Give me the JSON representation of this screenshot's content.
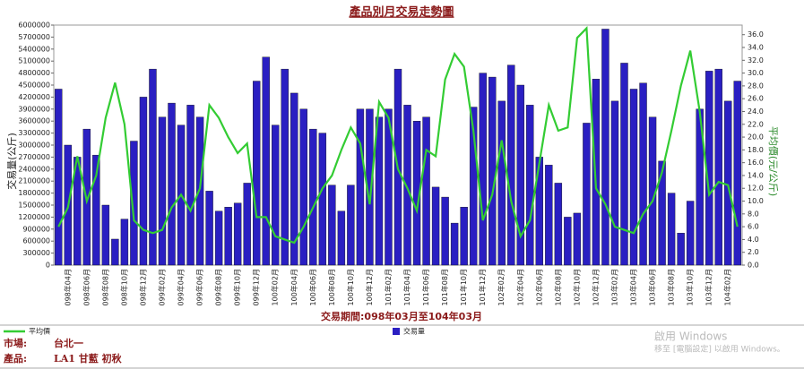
{
  "chart_data": {
    "type": "bar",
    "title": "產品別月交易走勢圖",
    "y_label": "交易量(公斤)",
    "y2_label": "平均價(元/公斤)",
    "x_label": "交易期間:098年03月至104年03月",
    "categories": [
      null,
      "098年04月",
      null,
      "098年06月",
      null,
      "098年08月",
      null,
      "098年10月",
      null,
      "098年12月",
      null,
      "099年02月",
      null,
      "099年04月",
      null,
      "099年06月",
      null,
      "099年08月",
      null,
      "099年10月",
      null,
      "099年12月",
      null,
      "100年02月",
      null,
      "100年04月",
      null,
      "100年06月",
      null,
      "100年08月",
      null,
      "100年10月",
      null,
      "100年12月",
      null,
      "101年02月",
      null,
      "101年04月",
      null,
      "101年06月",
      null,
      "101年08月",
      null,
      "101年10月",
      null,
      "101年12月",
      null,
      "102年02月",
      null,
      "102年04月",
      null,
      "102年06月",
      null,
      "102年08月",
      null,
      "102年10月",
      null,
      "102年12月",
      null,
      "103年02月",
      null,
      "103年04月",
      null,
      "103年06月",
      null,
      "103年08月",
      null,
      "103年10月",
      null,
      "103年12月",
      null,
      "104年02月",
      null
    ],
    "series": [
      {
        "name": "交易量",
        "type": "bar",
        "color": "#2a1fc2",
        "values": [
          4400000,
          3000000,
          2700000,
          3400000,
          2750000,
          1500000,
          650000,
          1150000,
          3100000,
          4200000,
          4900000,
          3700000,
          4050000,
          3500000,
          4000000,
          3700000,
          1850000,
          1350000,
          1450000,
          1550000,
          2050000,
          4600000,
          5200000,
          3500000,
          4900000,
          4300000,
          3900000,
          3400000,
          3300000,
          2000000,
          1350000,
          2000000,
          3900000,
          3900000,
          3700000,
          3900000,
          4900000,
          4000000,
          3600000,
          3700000,
          1950000,
          1700000,
          1050000,
          1450000,
          3950000,
          4800000,
          4700000,
          4100000,
          5000000,
          4500000,
          4000000,
          2700000,
          2500000,
          2050000,
          1200000,
          1300000,
          3550000,
          4650000,
          5900000,
          4100000,
          5050000,
          4400000,
          4550000,
          3700000,
          2600000,
          1800000,
          800000,
          1600000,
          3900000,
          4850000,
          4900000,
          4100000,
          4600000
        ]
      },
      {
        "name": "平均價",
        "type": "line",
        "axis": "y2",
        "color": "#33cc33",
        "values": [
          6,
          9,
          17,
          10,
          14,
          23,
          28.5,
          22,
          7,
          5.5,
          5,
          5.5,
          9,
          11,
          8.5,
          12,
          25,
          23,
          20,
          17.5,
          19,
          7.5,
          7.5,
          4.5,
          4,
          3.5,
          6,
          9,
          12,
          14,
          18,
          21.5,
          19,
          9.5,
          25.5,
          23,
          15,
          12,
          8.5,
          18,
          17,
          29,
          33,
          31,
          21,
          7,
          11,
          19.5,
          10,
          4.5,
          7,
          16,
          25,
          21,
          21.5,
          35.5,
          37,
          12,
          9.5,
          6,
          5.5,
          5,
          8,
          10,
          14.5,
          21,
          28,
          33.5,
          24,
          11,
          13,
          12.5,
          6
        ]
      }
    ],
    "ylim": [
      0,
      6000000
    ],
    "yticks": [
      0,
      300000,
      600000,
      900000,
      1200000,
      1500000,
      1800000,
      2100000,
      2400000,
      2700000,
      3000000,
      3300000,
      3600000,
      3900000,
      4200000,
      4500000,
      4800000,
      5100000,
      5400000,
      5700000,
      6000000
    ],
    "y2lim": [
      0,
      37.5
    ],
    "y2ticks": [
      {
        "value": 0,
        "label": "0.0"
      },
      {
        "value": 2,
        "label": "2.0"
      },
      {
        "value": 4,
        "label": "4.0"
      },
      {
        "value": 6,
        "label": "6.0"
      },
      {
        "value": 8,
        "label": "8.0"
      },
      {
        "value": 10,
        "label": "10.0"
      },
      {
        "value": 12,
        "label": "12.0"
      },
      {
        "value": 14,
        "label": "14.0"
      },
      {
        "value": 16,
        "label": "16.0"
      },
      {
        "value": 18,
        "label": "18.0"
      },
      {
        "value": 20,
        "label": "20.0"
      },
      {
        "value": 22,
        "label": "22.0"
      },
      {
        "value": 24,
        "label": "24.0"
      },
      {
        "value": 26,
        "label": "26.0"
      },
      {
        "value": 28,
        "label": "28.0"
      },
      {
        "value": 30,
        "label": "30.0"
      },
      {
        "value": 32,
        "label": "32.0"
      },
      {
        "value": 34,
        "label": "34.0"
      },
      {
        "value": 36,
        "label": "36.0"
      }
    ]
  },
  "footer": {
    "market_label": "市場:",
    "market": "台北一",
    "product_label": "產品:",
    "product": "LA1 甘藍 初秋"
  },
  "watermark": {
    "title": "啟用 Windows",
    "text": "移至 [電腦設定] 以啟用 Windows。"
  }
}
